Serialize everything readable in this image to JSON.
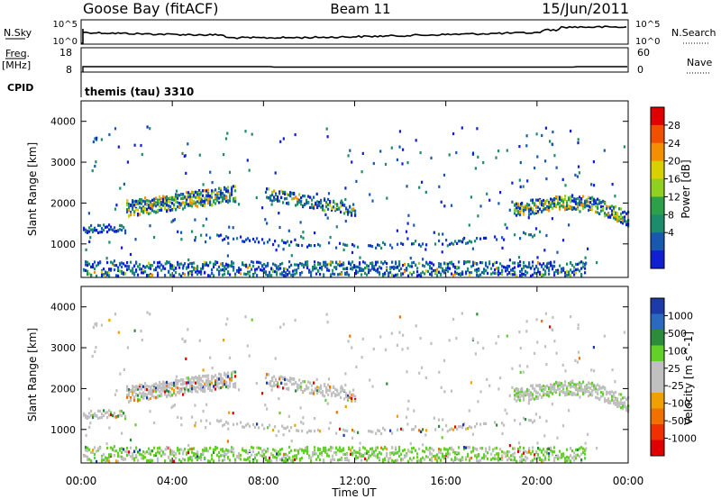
{
  "header": {
    "station": "Goose Bay (fitACF)",
    "beam": "Beam 11",
    "date": "15/Jun/2011"
  },
  "top_panels": {
    "nsky_label": "N.Sky",
    "nsky_ticks": [
      "10^5",
      "10^0"
    ],
    "nsearch_label": "N.Search",
    "nsearch_ticks": [
      "10^5",
      "10^0"
    ],
    "freq_label_1": "Freq.",
    "freq_label_2": "[MHz]",
    "freq_ticks": [
      "18",
      "8"
    ],
    "nave_label": "Nave",
    "nave_ticks": [
      "60",
      "0"
    ],
    "cpid_label": "CPID",
    "cpid_value": "themis (tau) 3310"
  },
  "chart_data": [
    {
      "type": "heatmap",
      "panel": "power",
      "ylabel": "Slant Range [km]",
      "yticks": [
        "4000",
        "3000",
        "2000",
        "1000"
      ],
      "ylim": [
        180,
        4500
      ],
      "colorbar_label": "Power [dB]",
      "colorbar_ticks": [
        "28",
        "24",
        "20",
        "16",
        "12",
        "8",
        "4"
      ],
      "colorbar_colors": [
        "#e00000",
        "#f05000",
        "#f49000",
        "#d8d000",
        "#90d020",
        "#2ea04a",
        "#1c8c6c",
        "#1858b0",
        "#1020d0"
      ]
    },
    {
      "type": "heatmap",
      "panel": "velocity",
      "ylabel": "Slant Range [km]",
      "yticks": [
        "4000",
        "3000",
        "2000",
        "1000"
      ],
      "ylim": [
        180,
        4500
      ],
      "colorbar_label": "Velocity [m s^-1]",
      "colorbar_ticks": [
        "1000",
        "500",
        "100",
        "25",
        "-25",
        "-100",
        "-500",
        "-1000"
      ],
      "colorbar_colors": [
        "#1c3aa8",
        "#2c6ac0",
        "#2c8c3c",
        "#62d028",
        "#c0c0c0",
        "#c0c0c0",
        "#f0a000",
        "#f07000",
        "#f03000",
        "#e00000"
      ]
    }
  ],
  "x_axis": {
    "label": "Time UT",
    "ticks": [
      "00:00",
      "04:00",
      "08:00",
      "12:00",
      "16:00",
      "20:00",
      "00:00"
    ]
  }
}
